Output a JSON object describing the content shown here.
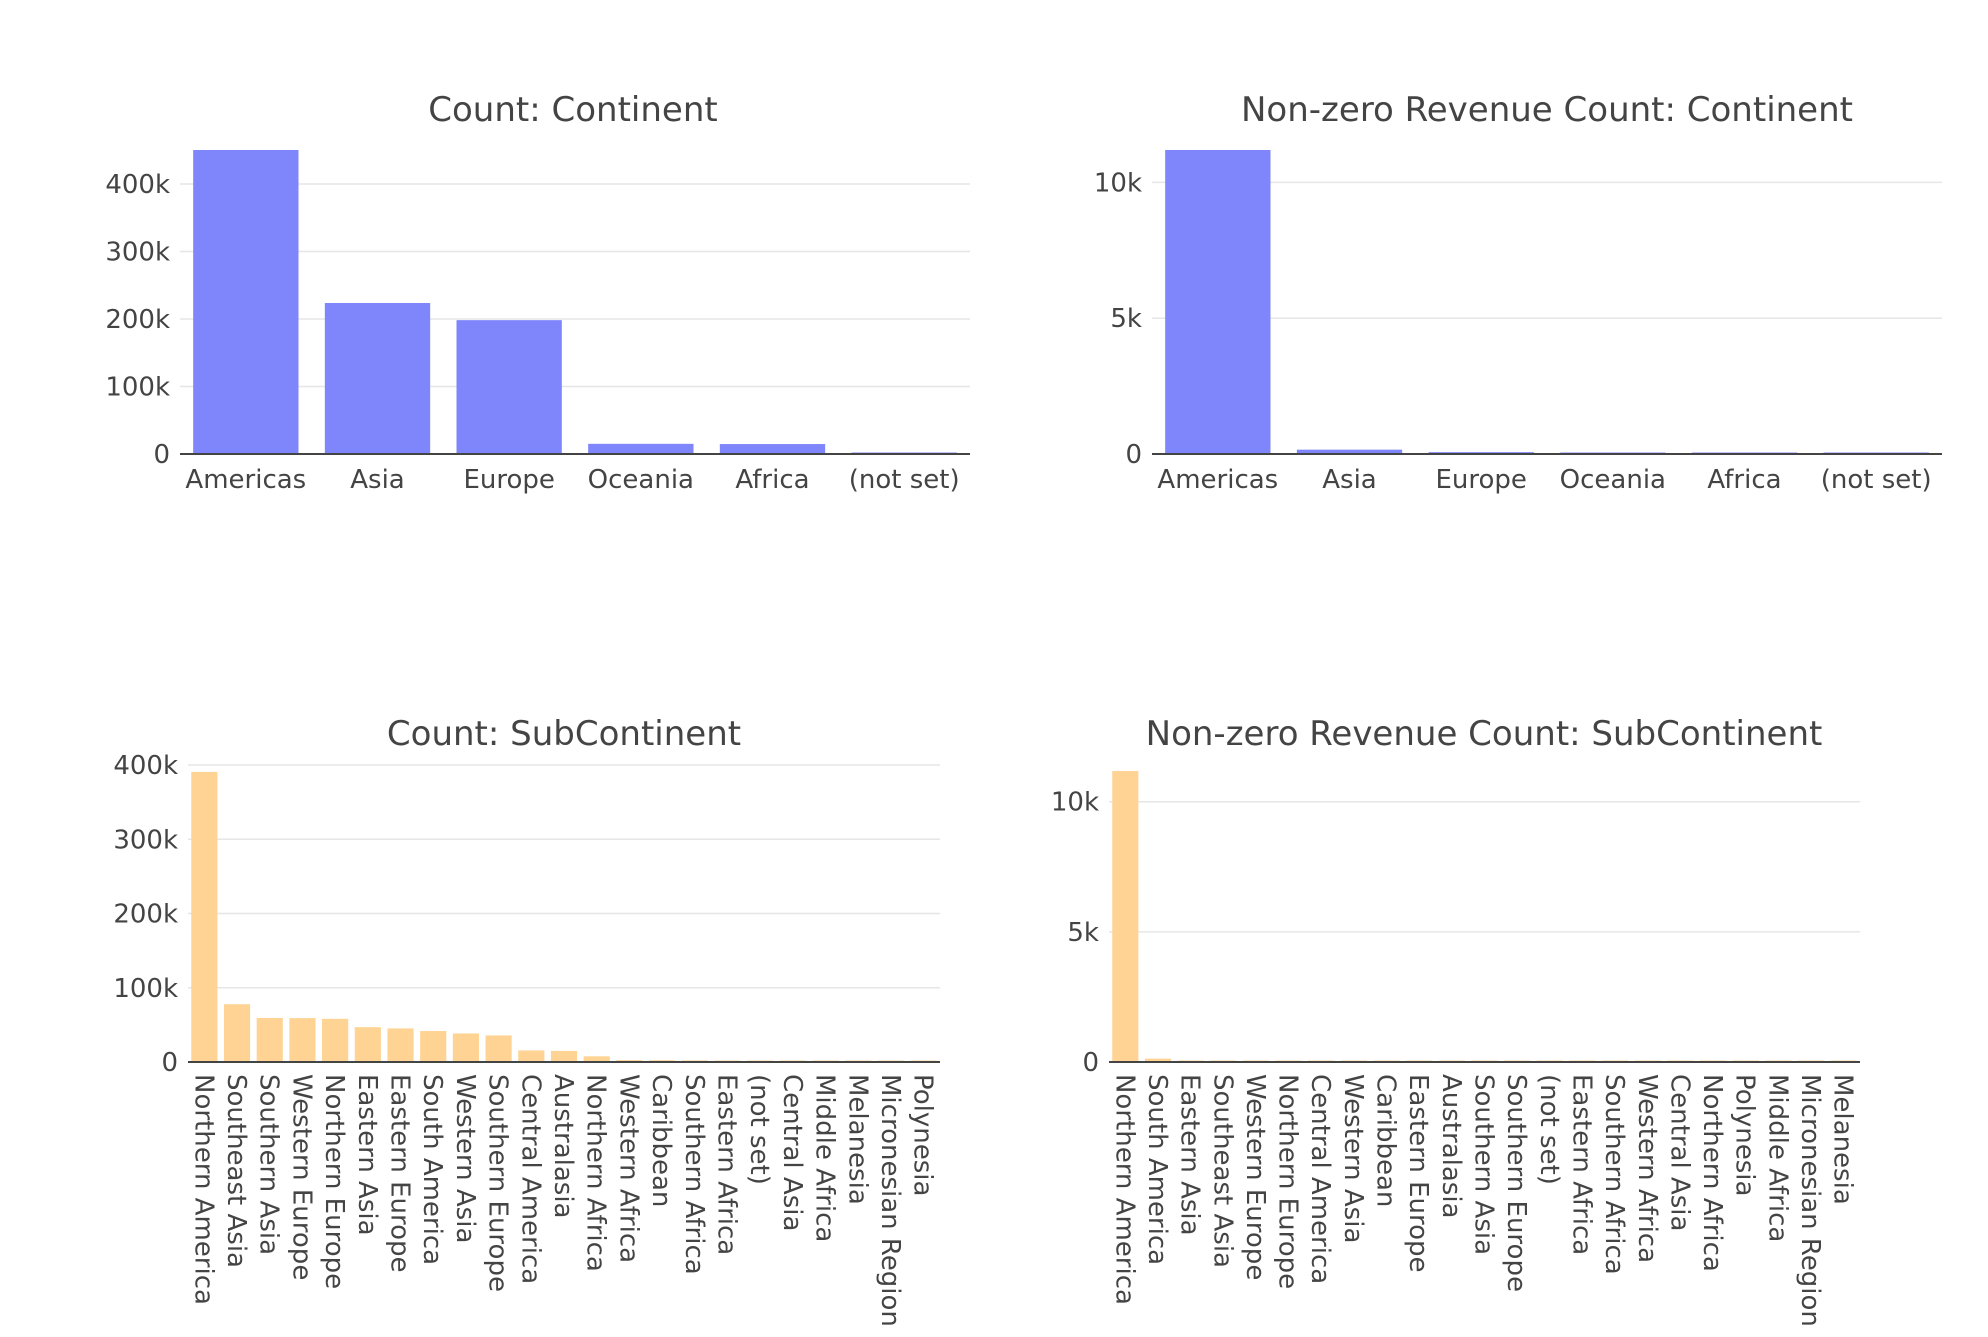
{
  "chart_data": [
    {
      "type": "bar",
      "title": "Count: Continent",
      "categories": [
        "Americas",
        "Asia",
        "Europe",
        "Oceania",
        "Africa",
        "(not set)"
      ],
      "values": [
        450377,
        223698,
        198311,
        15054,
        14745,
        1468
      ],
      "ylim": [
        0,
        450377
      ],
      "yticks": [
        0,
        100000,
        200000,
        300000,
        400000
      ],
      "ytick_labels": [
        "0",
        "100k",
        "200k",
        "300k",
        "400k"
      ],
      "color": "#7f86fb",
      "grid": true,
      "legend": "none",
      "xlabel_orientation": "horizontal"
    },
    {
      "type": "bar",
      "title": "Non-zero Revenue Count: Continent",
      "categories": [
        "Americas",
        "Asia",
        "Europe",
        "Oceania",
        "Africa",
        "(not set)"
      ],
      "values": [
        11193,
        160,
        69,
        20,
        13,
        10
      ],
      "ylim": [
        0,
        11193
      ],
      "yticks": [
        0,
        5000,
        10000
      ],
      "ytick_labels": [
        "0",
        "5k",
        "10k"
      ],
      "color": "#7f86fb",
      "grid": true,
      "legend": "none",
      "xlabel_orientation": "horizontal"
    },
    {
      "type": "bar",
      "title": "Count: SubContinent",
      "categories": [
        "Northern America",
        "Southeast Asia",
        "Southern Asia",
        "Western Europe",
        "Northern Europe",
        "Eastern Asia",
        "Eastern Europe",
        "South America",
        "Western Asia",
        "Southern Europe",
        "Central America",
        "Australasia",
        "Northern Africa",
        "Western Africa",
        "Caribbean",
        "Southern Africa",
        "Eastern Africa",
        "(not set)",
        "Central Asia",
        "Middle Africa",
        "Melanesia",
        "Micronesian Region",
        "Polynesia"
      ],
      "values": [
        390657,
        77800,
        59321,
        59114,
        58168,
        46919,
        45249,
        41731,
        38443,
        35780,
        15583,
        14893,
        7683,
        2573,
        2406,
        2169,
        1927,
        1468,
        1215,
        500,
        94,
        44,
        23
      ],
      "ylim": [
        0,
        400000
      ],
      "yticks": [
        0,
        100000,
        200000,
        300000,
        400000
      ],
      "ytick_labels": [
        "0",
        "100k",
        "200k",
        "300k",
        "400k"
      ],
      "color": "#fed394",
      "grid": true,
      "legend": "none",
      "xlabel_orientation": "vertical"
    },
    {
      "type": "bar",
      "title": "Non-zero Revenue Count: SubContinent",
      "categories": [
        "Northern America",
        "South America",
        "Eastern Asia",
        "Southeast Asia",
        "Western Europe",
        "Northern Europe",
        "Central America",
        "Western Asia",
        "Caribbean",
        "Eastern Europe",
        "Australasia",
        "Southern Asia",
        "Southern Europe",
        "(not set)",
        "Eastern Africa",
        "Southern Africa",
        "Western Africa",
        "Central Asia",
        "Northern Africa",
        "Polynesia",
        "Middle Africa",
        "Micronesian Region",
        "Melanesia"
      ],
      "values": [
        11179,
        130,
        50,
        40,
        35,
        30,
        25,
        20,
        18,
        17,
        16,
        15,
        10,
        10,
        5,
        4,
        3,
        2,
        1,
        1,
        1,
        1,
        1
      ],
      "ylim": [
        0,
        11179
      ],
      "yticks": [
        0,
        5000,
        10000
      ],
      "ytick_labels": [
        "0",
        "5k",
        "10k"
      ],
      "color": "#fed394",
      "grid": true,
      "legend": "none",
      "xlabel_orientation": "vertical"
    }
  ]
}
